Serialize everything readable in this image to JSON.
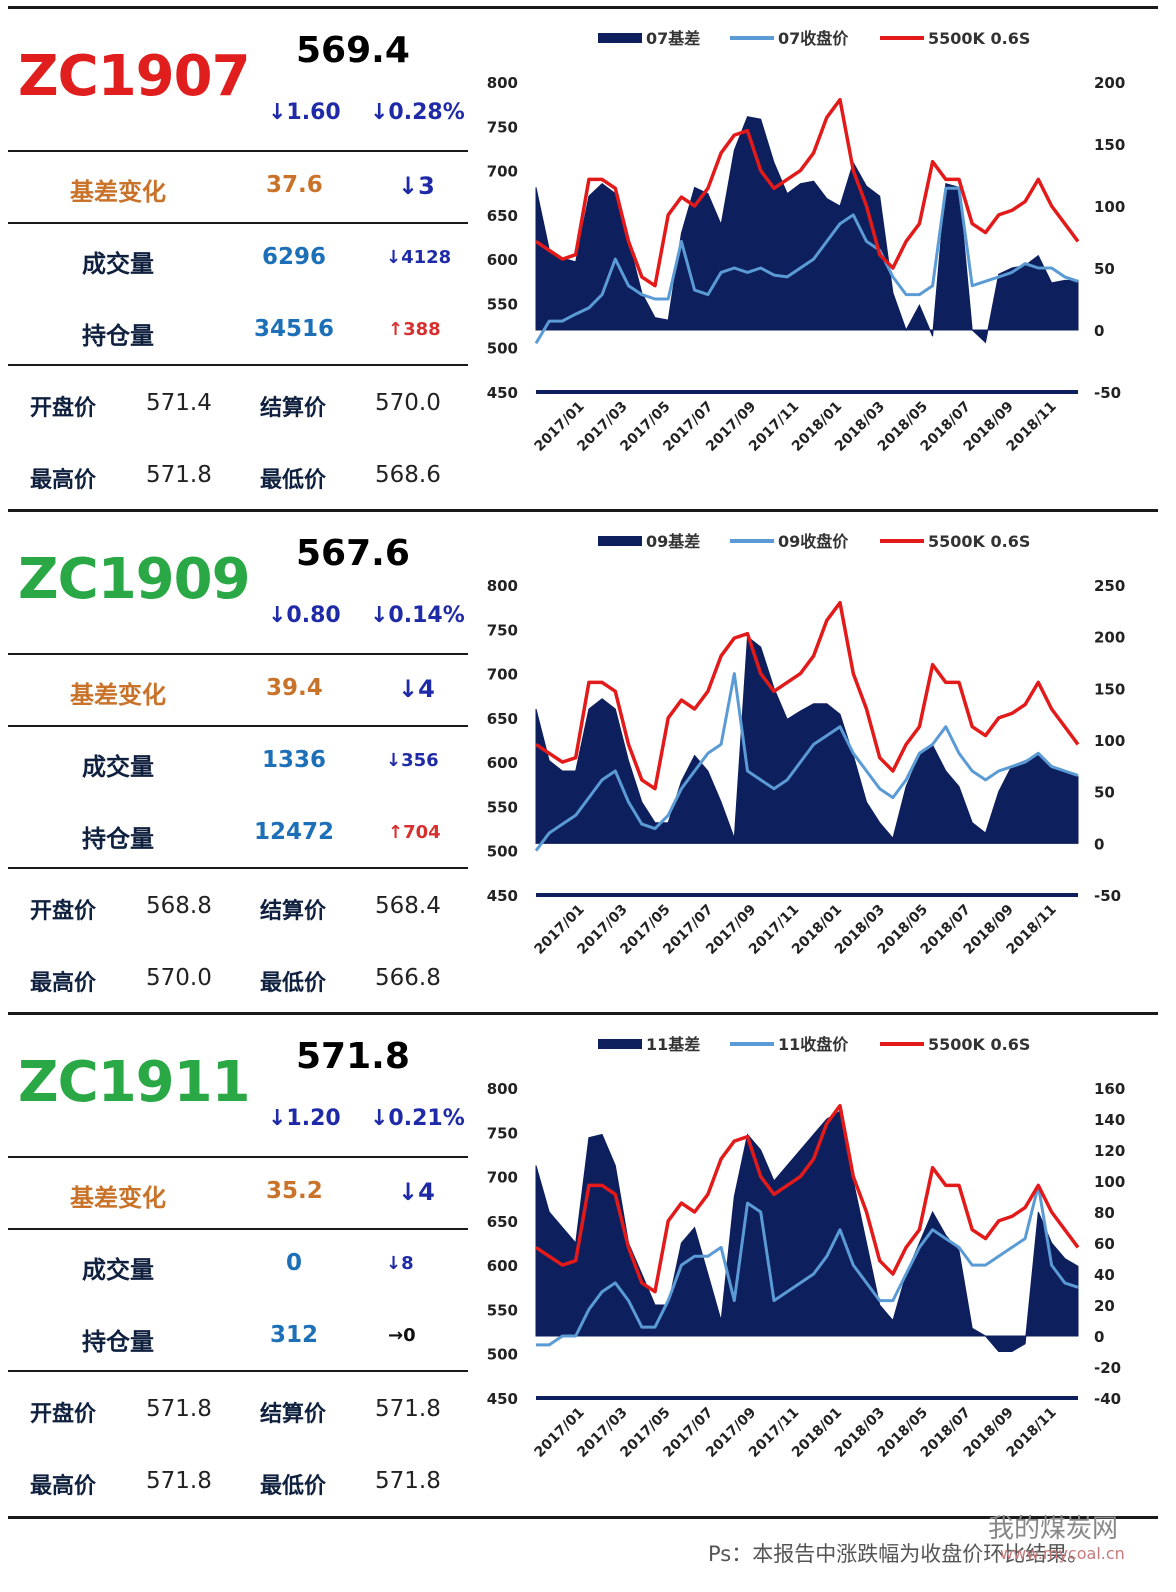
{
  "panels": [
    {
      "code": "ZC1907",
      "code_color": "#e01e1e",
      "price": "569.4",
      "change_abs": "↓1.60",
      "change_pct": "↓0.28%",
      "basis_label": "基差变化",
      "basis_value": "37.6",
      "basis_change": "↓3",
      "volume_label": "成交量",
      "volume_value": "6296",
      "volume_change": "↓4128",
      "oi_label": "持仓量",
      "oi_value": "34516",
      "oi_change": "↑388",
      "oi_change_color": "red",
      "open_label": "开盘价",
      "open_value": "571.4",
      "settle_label": "结算价",
      "settle_value": "570.0",
      "high_label": "最高价",
      "high_value": "571.8",
      "low_label": "最低价",
      "low_value": "568.6"
    },
    {
      "code": "ZC1909",
      "code_color": "#2aa845",
      "price": "567.6",
      "change_abs": "↓0.80",
      "change_pct": "↓0.14%",
      "basis_label": "基差变化",
      "basis_value": "39.4",
      "basis_change": "↓4",
      "volume_label": "成交量",
      "volume_value": "1336",
      "volume_change": "↓356",
      "oi_label": "持仓量",
      "oi_value": "12472",
      "oi_change": "↑704",
      "oi_change_color": "red",
      "open_label": "开盘价",
      "open_value": "568.8",
      "settle_label": "结算价",
      "settle_value": "568.4",
      "high_label": "最高价",
      "high_value": "570.0",
      "low_label": "最低价",
      "low_value": "566.8"
    },
    {
      "code": "ZC1911",
      "code_color": "#2aa845",
      "price": "571.8",
      "change_abs": "↓1.20",
      "change_pct": "↓0.21%",
      "basis_label": "基差变化",
      "basis_value": "35.2",
      "basis_change": "↓4",
      "volume_label": "成交量",
      "volume_value": "0",
      "volume_change": "↓8",
      "oi_label": "持仓量",
      "oi_value": "312",
      "oi_change": "→0",
      "oi_change_color": "black",
      "open_label": "开盘价",
      "open_value": "571.8",
      "settle_label": "结算价",
      "settle_value": "571.8",
      "high_label": "最高价",
      "high_value": "571.8",
      "low_label": "最低价",
      "low_value": "571.8"
    }
  ],
  "chart_data": [
    {
      "type": "line",
      "legend": [
        "07基差",
        "07收盘价",
        "5500K 0.6S"
      ],
      "colors": {
        "basis": "#0d1f5c",
        "close": "#5b9bd5",
        "spot": "#e31a1a"
      },
      "x_ticks": [
        "2017/01",
        "2017/03",
        "2017/05",
        "2017/07",
        "2017/09",
        "2017/11",
        "2018/01",
        "2018/03",
        "2018/05",
        "2018/07",
        "2018/09",
        "2018/11"
      ],
      "left_axis": {
        "ticks": [
          800,
          750,
          700,
          650,
          600,
          550,
          500,
          450
        ],
        "ylim": [
          450,
          800
        ]
      },
      "right_axis": {
        "ticks": [
          200,
          150,
          100,
          50,
          0,
          -50
        ],
        "ylim": [
          -50,
          200
        ]
      },
      "series": [
        {
          "name": "07基差",
          "axis": "right",
          "kind": "area",
          "values": [
            115,
            65,
            58,
            55,
            108,
            118,
            110,
            72,
            30,
            10,
            8,
            78,
            115,
            110,
            85,
            145,
            172,
            170,
            135,
            110,
            118,
            120,
            106,
            100,
            135,
            116,
            108,
            30,
            0,
            20,
            -5,
            118,
            115,
            0,
            -10,
            45,
            50,
            52,
            60,
            38,
            40,
            40
          ]
        },
        {
          "name": "07收盘价",
          "axis": "left",
          "kind": "line",
          "values": [
            505,
            530,
            530,
            538,
            545,
            560,
            600,
            570,
            560,
            555,
            555,
            620,
            565,
            560,
            585,
            590,
            585,
            590,
            582,
            580,
            590,
            600,
            620,
            640,
            650,
            620,
            610,
            580,
            560,
            560,
            570,
            680,
            680,
            570,
            575,
            580,
            585,
            595,
            590,
            590,
            580,
            575
          ]
        },
        {
          "name": "5500K 0.6S",
          "axis": "left",
          "kind": "line",
          "values": [
            620,
            610,
            600,
            605,
            690,
            690,
            680,
            620,
            580,
            570,
            650,
            670,
            660,
            680,
            720,
            740,
            745,
            700,
            680,
            690,
            700,
            720,
            760,
            780,
            700,
            660,
            605,
            590,
            620,
            640,
            710,
            690,
            690,
            640,
            630,
            650,
            655,
            665,
            690,
            660,
            640,
            620
          ]
        }
      ]
    },
    {
      "type": "line",
      "legend": [
        "09基差",
        "09收盘价",
        "5500K 0.6S"
      ],
      "colors": {
        "basis": "#0d1f5c",
        "close": "#5b9bd5",
        "spot": "#e31a1a"
      },
      "x_ticks": [
        "2017/01",
        "2017/03",
        "2017/05",
        "2017/07",
        "2017/09",
        "2017/11",
        "2018/01",
        "2018/03",
        "2018/05",
        "2018/07",
        "2018/09",
        "2018/11"
      ],
      "left_axis": {
        "ticks": [
          800,
          750,
          700,
          650,
          600,
          550,
          500,
          450
        ],
        "ylim": [
          450,
          800
        ]
      },
      "right_axis": {
        "ticks": [
          250,
          200,
          150,
          100,
          50,
          0,
          -50
        ],
        "ylim": [
          -50,
          250
        ]
      },
      "series": [
        {
          "name": "09基差",
          "axis": "right",
          "kind": "area",
          "values": [
            130,
            80,
            70,
            70,
            130,
            140,
            130,
            80,
            40,
            20,
            20,
            60,
            85,
            70,
            40,
            5,
            200,
            190,
            150,
            120,
            128,
            135,
            135,
            125,
            85,
            40,
            20,
            5,
            55,
            85,
            95,
            70,
            55,
            20,
            10,
            50,
            75,
            80,
            85,
            75,
            70,
            65
          ]
        },
        {
          "name": "09收盘价",
          "axis": "left",
          "kind": "line",
          "values": [
            500,
            520,
            530,
            540,
            560,
            580,
            590,
            555,
            530,
            525,
            540,
            570,
            590,
            610,
            620,
            700,
            590,
            580,
            570,
            580,
            600,
            620,
            630,
            640,
            610,
            590,
            570,
            560,
            580,
            610,
            620,
            640,
            610,
            590,
            580,
            590,
            595,
            600,
            610,
            595,
            590,
            585
          ]
        },
        {
          "name": "5500K 0.6S",
          "axis": "left",
          "kind": "line",
          "values": [
            620,
            610,
            600,
            605,
            690,
            690,
            680,
            620,
            580,
            570,
            650,
            670,
            660,
            680,
            720,
            740,
            745,
            700,
            680,
            690,
            700,
            720,
            760,
            780,
            700,
            660,
            605,
            590,
            620,
            640,
            710,
            690,
            690,
            640,
            630,
            650,
            655,
            665,
            690,
            660,
            640,
            620
          ]
        }
      ]
    },
    {
      "type": "line",
      "legend": [
        "11基差",
        "11收盘价",
        "5500K 0.6S"
      ],
      "colors": {
        "basis": "#0d1f5c",
        "close": "#5b9bd5",
        "spot": "#e31a1a"
      },
      "x_ticks": [
        "2017/01",
        "2017/03",
        "2017/05",
        "2017/07",
        "2017/09",
        "2017/11",
        "2018/01",
        "2018/03",
        "2018/05",
        "2018/07",
        "2018/09",
        "2018/11"
      ],
      "left_axis": {
        "ticks": [
          800,
          750,
          700,
          650,
          600,
          550,
          500,
          450
        ],
        "ylim": [
          450,
          800
        ]
      },
      "right_axis": {
        "ticks": [
          160,
          140,
          120,
          100,
          80,
          60,
          40,
          20,
          0,
          -20,
          -40
        ],
        "ylim": [
          -40,
          160
        ]
      },
      "series": [
        {
          "name": "11基差",
          "axis": "right",
          "kind": "area",
          "values": [
            110,
            80,
            70,
            60,
            128,
            130,
            110,
            60,
            40,
            20,
            20,
            60,
            70,
            40,
            10,
            90,
            130,
            120,
            100,
            110,
            120,
            130,
            140,
            145,
            100,
            60,
            20,
            10,
            40,
            60,
            80,
            65,
            55,
            5,
            0,
            -10,
            -10,
            -5,
            80,
            60,
            50,
            45
          ]
        },
        {
          "name": "11收盘价",
          "axis": "left",
          "kind": "line",
          "values": [
            510,
            510,
            520,
            520,
            550,
            570,
            580,
            560,
            530,
            530,
            560,
            600,
            610,
            610,
            620,
            560,
            670,
            660,
            560,
            570,
            580,
            590,
            610,
            640,
            600,
            580,
            560,
            560,
            590,
            620,
            640,
            630,
            620,
            600,
            600,
            610,
            620,
            630,
            690,
            600,
            580,
            575
          ]
        },
        {
          "name": "5500K 0.6S",
          "axis": "left",
          "kind": "line",
          "values": [
            620,
            610,
            600,
            605,
            690,
            690,
            680,
            620,
            580,
            570,
            650,
            670,
            660,
            680,
            720,
            740,
            745,
            700,
            680,
            690,
            700,
            720,
            760,
            780,
            700,
            660,
            605,
            590,
            620,
            640,
            710,
            690,
            690,
            640,
            630,
            650,
            655,
            665,
            690,
            660,
            640,
            620
          ]
        }
      ]
    }
  ],
  "footer_note": "Ps：本报告中涨跌幅为收盘价环比结果。",
  "watermark_text": "我的煤炭网",
  "watermark_url": "www.mycoal.cn"
}
